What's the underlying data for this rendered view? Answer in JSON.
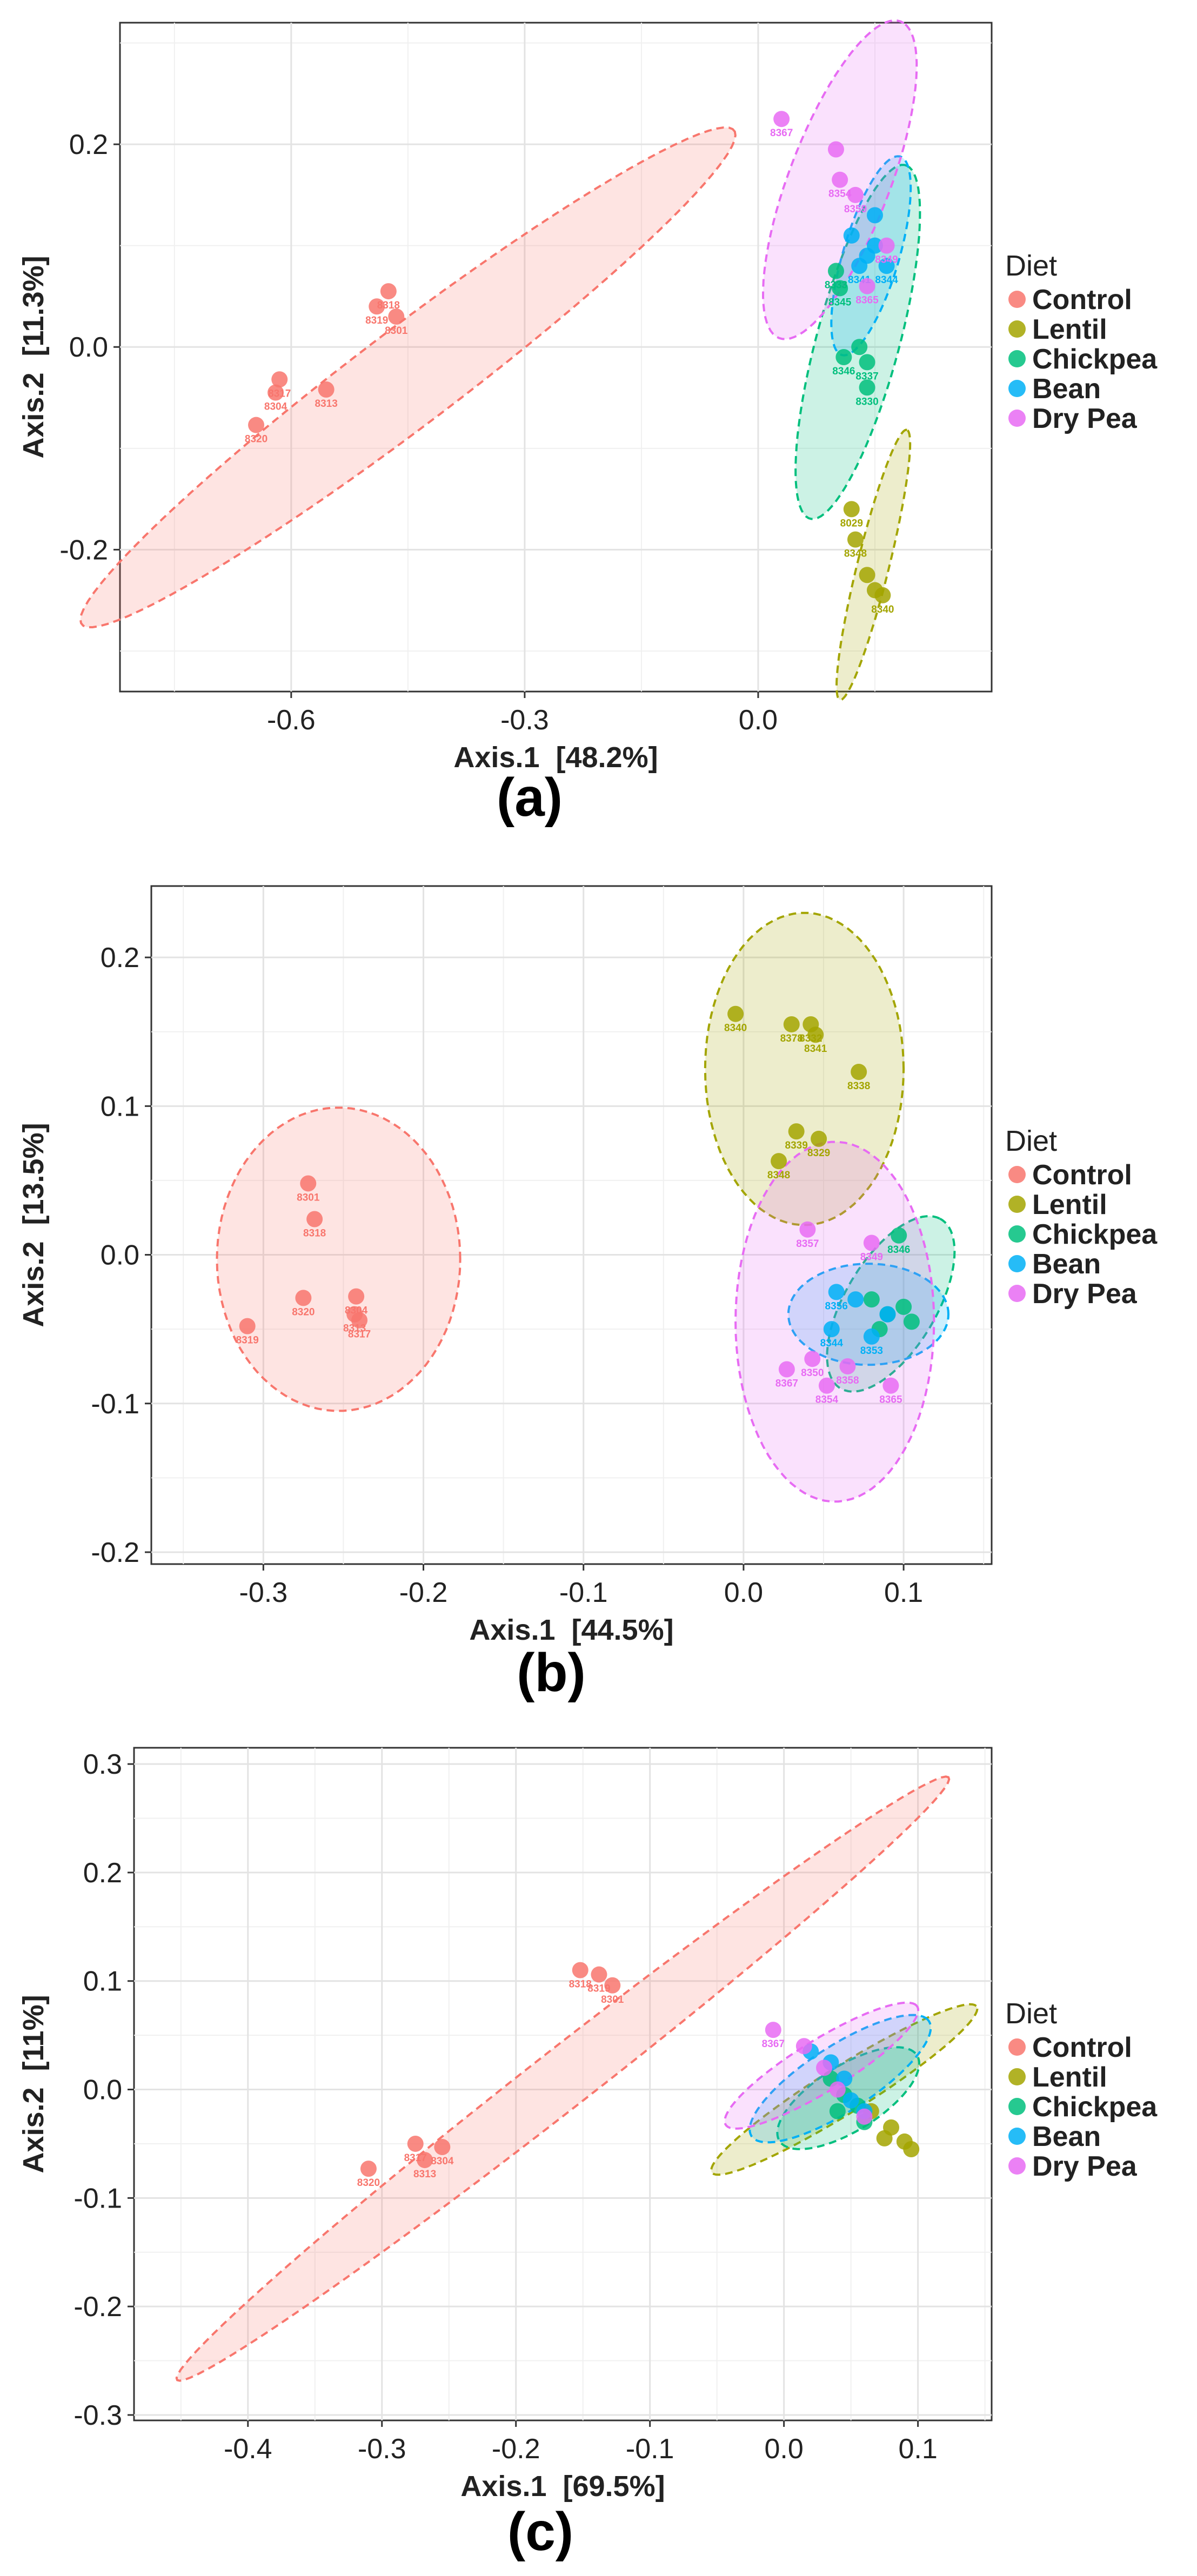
{
  "legend": {
    "title": "Diet",
    "entries": [
      {
        "name": "Control",
        "color": "#F8766D"
      },
      {
        "name": "Lentil",
        "color": "#A3A500"
      },
      {
        "name": "Chickpea",
        "color": "#00BF7D"
      },
      {
        "name": "Bean",
        "color": "#00B0F6"
      },
      {
        "name": "Dry Pea",
        "color": "#E76BF3"
      }
    ]
  },
  "chart_data": [
    {
      "type": "scatter",
      "panel_label": "(a)",
      "xlabel": "Axis.1  [48.2%]",
      "ylabel": "Axis.2  [11.3%]",
      "xlim": [
        -0.82,
        0.3
      ],
      "ylim": [
        -0.34,
        0.32
      ],
      "xticks": [
        -0.6,
        -0.3,
        0.0
      ],
      "xtick_labels": [
        "-0.6",
        "-0.3",
        "0.0"
      ],
      "yticks": [
        -0.2,
        0.0,
        0.2
      ],
      "ytick_labels": [
        "-0.2",
        "0.0",
        "0.2"
      ],
      "grid": true,
      "legend_position": "right",
      "series": [
        {
          "name": "Control",
          "points": [
            {
              "x": -0.475,
              "y": 0.055,
              "label": "8318"
            },
            {
              "x": -0.49,
              "y": 0.04,
              "label": "8319"
            },
            {
              "x": -0.465,
              "y": 0.03,
              "label": "8301"
            },
            {
              "x": -0.615,
              "y": -0.032,
              "label": "8317"
            },
            {
              "x": -0.62,
              "y": -0.045,
              "label": "8304"
            },
            {
              "x": -0.555,
              "y": -0.042,
              "label": "8313"
            },
            {
              "x": -0.645,
              "y": -0.077,
              "label": "8320"
            }
          ],
          "ellipse": {
            "cx": -0.45,
            "cy": -0.03,
            "a": 0.485,
            "b": 0.052,
            "angle": 30
          }
        },
        {
          "name": "Lentil",
          "points": [
            {
              "x": 0.12,
              "y": -0.16,
              "label": "8029"
            },
            {
              "x": 0.125,
              "y": -0.19,
              "label": "8348"
            },
            {
              "x": 0.14,
              "y": -0.225,
              "label": ""
            },
            {
              "x": 0.15,
              "y": -0.24,
              "label": ""
            },
            {
              "x": 0.16,
              "y": -0.245,
              "label": "8340"
            }
          ],
          "ellipse": {
            "cx": 0.148,
            "cy": -0.215,
            "a": 0.14,
            "b": 0.02,
            "angle": 72
          }
        },
        {
          "name": "Chickpea",
          "points": [
            {
              "x": 0.1,
              "y": 0.075,
              "label": "8333"
            },
            {
              "x": 0.105,
              "y": 0.058,
              "label": "8345"
            },
            {
              "x": 0.11,
              "y": -0.01,
              "label": "8346"
            },
            {
              "x": 0.14,
              "y": -0.015,
              "label": "8337"
            },
            {
              "x": 0.14,
              "y": -0.04,
              "label": "8330"
            },
            {
              "x": 0.13,
              "y": 0.0,
              "label": ""
            }
          ],
          "ellipse": {
            "cx": 0.128,
            "cy": 0.005,
            "a": 0.185,
            "b": 0.052,
            "angle": 70
          }
        },
        {
          "name": "Bean",
          "points": [
            {
              "x": 0.15,
              "y": 0.13,
              "label": ""
            },
            {
              "x": 0.12,
              "y": 0.11,
              "label": ""
            },
            {
              "x": 0.14,
              "y": 0.09,
              "label": ""
            },
            {
              "x": 0.165,
              "y": 0.08,
              "label": "8344"
            },
            {
              "x": 0.13,
              "y": 0.08,
              "label": "8341"
            },
            {
              "x": 0.15,
              "y": 0.1,
              "label": ""
            }
          ],
          "ellipse": {
            "cx": 0.145,
            "cy": 0.09,
            "a": 0.105,
            "b": 0.035,
            "angle": 68
          }
        },
        {
          "name": "Dry Pea",
          "points": [
            {
              "x": 0.03,
              "y": 0.225,
              "label": "8367"
            },
            {
              "x": 0.1,
              "y": 0.195,
              "label": ""
            },
            {
              "x": 0.105,
              "y": 0.165,
              "label": "8354"
            },
            {
              "x": 0.125,
              "y": 0.15,
              "label": "8359"
            },
            {
              "x": 0.165,
              "y": 0.1,
              "label": "8349"
            },
            {
              "x": 0.14,
              "y": 0.06,
              "label": "8365"
            }
          ],
          "ellipse": {
            "cx": 0.105,
            "cy": 0.165,
            "a": 0.175,
            "b": 0.062,
            "angle": 62
          }
        }
      ]
    },
    {
      "type": "scatter",
      "panel_label": "(b)",
      "xlabel": "Axis.1  [44.5%]",
      "ylabel": "Axis.2  [13.5%]",
      "xlim": [
        -0.37,
        0.155
      ],
      "ylim": [
        -0.208,
        0.248
      ],
      "xticks": [
        -0.3,
        -0.2,
        -0.1,
        0.0,
        0.1
      ],
      "xtick_labels": [
        "-0.3",
        "-0.2",
        "-0.1",
        "0.0",
        "0.1"
      ],
      "yticks": [
        -0.2,
        -0.1,
        0.0,
        0.1,
        0.2
      ],
      "ytick_labels": [
        "-0.2",
        "-0.1",
        "0.0",
        "0.1",
        "0.2"
      ],
      "grid": true,
      "legend_position": "right",
      "series": [
        {
          "name": "Control",
          "points": [
            {
              "x": -0.272,
              "y": 0.048,
              "label": "8301"
            },
            {
              "x": -0.268,
              "y": 0.024,
              "label": "8318"
            },
            {
              "x": -0.275,
              "y": -0.029,
              "label": "8320"
            },
            {
              "x": -0.31,
              "y": -0.048,
              "label": "8319"
            },
            {
              "x": -0.242,
              "y": -0.028,
              "label": "8304"
            },
            {
              "x": -0.24,
              "y": -0.044,
              "label": "8317"
            },
            {
              "x": -0.243,
              "y": -0.04,
              "label": "8313"
            }
          ],
          "ellipse": {
            "cx": -0.253,
            "cy": -0.003,
            "a": 0.076,
            "b": 0.102,
            "angle": 0
          }
        },
        {
          "name": "Lentil",
          "points": [
            {
              "x": -0.005,
              "y": 0.162,
              "label": "8340"
            },
            {
              "x": 0.03,
              "y": 0.155,
              "label": "8378"
            },
            {
              "x": 0.042,
              "y": 0.155,
              "label": "8332"
            },
            {
              "x": 0.045,
              "y": 0.148,
              "label": "8341"
            },
            {
              "x": 0.072,
              "y": 0.123,
              "label": "8338"
            },
            {
              "x": 0.033,
              "y": 0.083,
              "label": "8339"
            },
            {
              "x": 0.047,
              "y": 0.078,
              "label": "8329"
            },
            {
              "x": 0.022,
              "y": 0.063,
              "label": "8348"
            }
          ],
          "ellipse": {
            "cx": 0.038,
            "cy": 0.125,
            "a": 0.062,
            "b": 0.105,
            "angle": 0
          }
        },
        {
          "name": "Chickpea",
          "points": [
            {
              "x": 0.097,
              "y": 0.013,
              "label": "8346"
            },
            {
              "x": 0.08,
              "y": -0.03,
              "label": ""
            },
            {
              "x": 0.09,
              "y": -0.04,
              "label": ""
            },
            {
              "x": 0.1,
              "y": -0.035,
              "label": ""
            },
            {
              "x": 0.085,
              "y": -0.05,
              "label": ""
            },
            {
              "x": 0.105,
              "y": -0.045,
              "label": ""
            }
          ],
          "ellipse": {
            "cx": 0.092,
            "cy": -0.033,
            "a": 0.065,
            "b": 0.029,
            "angle": 62
          }
        },
        {
          "name": "Bean",
          "points": [
            {
              "x": 0.058,
              "y": -0.025,
              "label": "8356"
            },
            {
              "x": 0.07,
              "y": -0.03,
              "label": ""
            },
            {
              "x": 0.055,
              "y": -0.05,
              "label": "8344"
            },
            {
              "x": 0.08,
              "y": -0.055,
              "label": "8353"
            },
            {
              "x": 0.09,
              "y": -0.04,
              "label": ""
            }
          ],
          "ellipse": {
            "cx": 0.078,
            "cy": -0.04,
            "a": 0.05,
            "b": 0.034,
            "angle": 0
          }
        },
        {
          "name": "Dry Pea",
          "points": [
            {
              "x": 0.04,
              "y": 0.017,
              "label": "8357"
            },
            {
              "x": 0.08,
              "y": 0.008,
              "label": "8349"
            },
            {
              "x": 0.027,
              "y": -0.077,
              "label": "8367"
            },
            {
              "x": 0.043,
              "y": -0.07,
              "label": "8350"
            },
            {
              "x": 0.052,
              "y": -0.088,
              "label": "8354"
            },
            {
              "x": 0.065,
              "y": -0.075,
              "label": "8358"
            },
            {
              "x": 0.092,
              "y": -0.088,
              "label": "8365"
            }
          ],
          "ellipse": {
            "cx": 0.057,
            "cy": -0.045,
            "a": 0.062,
            "b": 0.121,
            "angle": 0
          }
        }
      ]
    },
    {
      "type": "scatter",
      "panel_label": "(c)",
      "xlabel": "Axis.1  [69.5%]",
      "ylabel": "Axis.2  [11%]",
      "xlim": [
        -0.485,
        0.155
      ],
      "ylim": [
        -0.305,
        0.315
      ],
      "xticks": [
        -0.4,
        -0.3,
        -0.2,
        -0.1,
        0.0,
        0.1
      ],
      "xtick_labels": [
        "-0.4",
        "-0.3",
        "-0.2",
        "-0.1",
        "0.0",
        "0.1"
      ],
      "yticks": [
        -0.3,
        -0.2,
        -0.1,
        0.0,
        0.1,
        0.2,
        0.3
      ],
      "ytick_labels": [
        "-0.3",
        "-0.2",
        "-0.1",
        "0.0",
        "0.1",
        "0.2",
        "0.3"
      ],
      "grid": true,
      "legend_position": "right",
      "series": [
        {
          "name": "Control",
          "points": [
            {
              "x": -0.152,
              "y": 0.11,
              "label": "8318"
            },
            {
              "x": -0.138,
              "y": 0.106,
              "label": "8319"
            },
            {
              "x": -0.128,
              "y": 0.096,
              "label": "8301"
            },
            {
              "x": -0.31,
              "y": -0.073,
              "label": "8320"
            },
            {
              "x": -0.275,
              "y": -0.05,
              "label": "8317"
            },
            {
              "x": -0.255,
              "y": -0.053,
              "label": "8304"
            },
            {
              "x": -0.268,
              "y": -0.065,
              "label": "8313"
            }
          ],
          "ellipse": {
            "cx": -0.165,
            "cy": 0.01,
            "a": 0.4,
            "b": 0.025,
            "angle": 44
          }
        },
        {
          "name": "Lentil",
          "points": [
            {
              "x": 0.065,
              "y": -0.02,
              "label": ""
            },
            {
              "x": 0.08,
              "y": -0.035,
              "label": ""
            },
            {
              "x": 0.09,
              "y": -0.048,
              "label": ""
            },
            {
              "x": 0.075,
              "y": -0.045,
              "label": ""
            },
            {
              "x": 0.095,
              "y": -0.055,
              "label": ""
            }
          ],
          "ellipse": {
            "cx": 0.045,
            "cy": 0.0,
            "a": 0.125,
            "b": 0.02,
            "angle": 38
          }
        },
        {
          "name": "Chickpea",
          "points": [
            {
              "x": 0.035,
              "y": 0.01,
              "label": ""
            },
            {
              "x": 0.045,
              "y": -0.005,
              "label": ""
            },
            {
              "x": 0.055,
              "y": -0.015,
              "label": ""
            },
            {
              "x": 0.04,
              "y": -0.02,
              "label": ""
            },
            {
              "x": 0.06,
              "y": -0.03,
              "label": ""
            }
          ],
          "ellipse": {
            "cx": 0.048,
            "cy": -0.008,
            "a": 0.065,
            "b": 0.028,
            "angle": 40
          }
        },
        {
          "name": "Bean",
          "points": [
            {
              "x": 0.02,
              "y": 0.035,
              "label": ""
            },
            {
              "x": 0.035,
              "y": 0.025,
              "label": ""
            },
            {
              "x": 0.045,
              "y": 0.01,
              "label": ""
            },
            {
              "x": 0.05,
              "y": -0.01,
              "label": ""
            },
            {
              "x": 0.06,
              "y": -0.02,
              "label": ""
            }
          ],
          "ellipse": {
            "cx": 0.042,
            "cy": 0.01,
            "a": 0.085,
            "b": 0.028,
            "angle": 40
          }
        },
        {
          "name": "Dry Pea",
          "points": [
            {
              "x": -0.008,
              "y": 0.055,
              "label": "8367"
            },
            {
              "x": 0.015,
              "y": 0.04,
              "label": ""
            },
            {
              "x": 0.03,
              "y": 0.02,
              "label": ""
            },
            {
              "x": 0.04,
              "y": 0.0,
              "label": ""
            },
            {
              "x": 0.06,
              "y": -0.025,
              "label": ""
            }
          ],
          "ellipse": {
            "cx": 0.028,
            "cy": 0.022,
            "a": 0.09,
            "b": 0.022,
            "angle": 38
          }
        }
      ]
    }
  ]
}
